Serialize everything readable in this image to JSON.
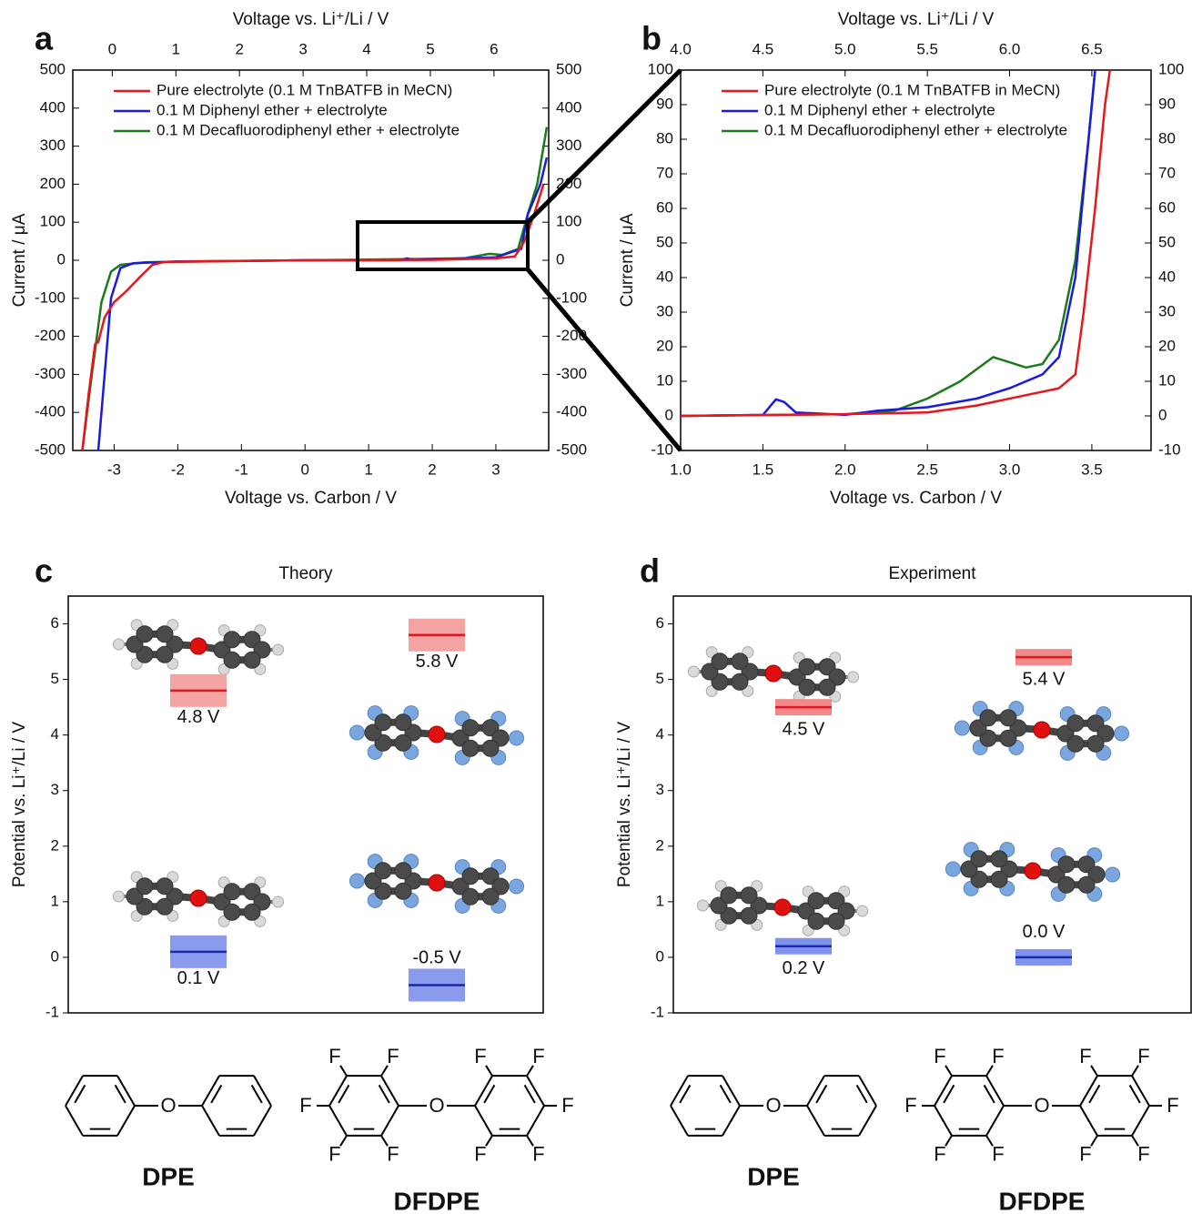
{
  "chart_data": [
    {
      "type": "line",
      "label": "a",
      "x_label": "Voltage vs. Carbon / V",
      "x2_label": "Voltage vs. Li⁺/Li / V",
      "y_label": "Current / μA",
      "xlim": [
        -3.65,
        3.83
      ],
      "xticks": [
        -3,
        -2,
        -1,
        0,
        1,
        2,
        3
      ],
      "x2lim": [
        -0.62,
        6.86
      ],
      "x2ticks": [
        0,
        1,
        2,
        3,
        4,
        5,
        6
      ],
      "ylim": [
        -500,
        500
      ],
      "yticks": [
        -500,
        -400,
        -300,
        -200,
        -100,
        0,
        100,
        200,
        300,
        400,
        500
      ],
      "y2lim": [
        -500,
        500
      ],
      "y2ticks": [
        -500,
        -400,
        -300,
        -200,
        -100,
        0,
        100,
        200,
        300,
        400,
        500
      ],
      "legend": "upper left",
      "series": [
        {
          "name": "Pure electrolyte (0.1 M TnBATFB in MeCN)",
          "color": "#e8161d",
          "x": [
            -3.5,
            -3.4,
            -3.3,
            -3.25,
            -3.15,
            -3.0,
            -2.8,
            -2.6,
            -2.4,
            -2.2,
            -1,
            0,
            2,
            3,
            3.3,
            3.45,
            3.6,
            3.75
          ],
          "values": [
            -500,
            -350,
            -220,
            -215,
            -150,
            -110,
            -80,
            -45,
            -12,
            -4,
            -2,
            0,
            1,
            5,
            10,
            50,
            120,
            200
          ]
        },
        {
          "name": "0.1 M Diphenyl ether + electrolyte",
          "color": "#1a1ae0",
          "x": [
            -3.25,
            -3.15,
            -3.05,
            -2.9,
            -2.7,
            -2,
            0,
            1.5,
            1.6,
            1.7,
            3,
            3.4,
            3.5,
            3.7,
            3.8
          ],
          "values": [
            -500,
            -300,
            -100,
            -20,
            -8,
            -3,
            0,
            0,
            5,
            1,
            8,
            30,
            120,
            200,
            270
          ]
        },
        {
          "name": "0.1 M Decafluorodiphenyl ether + electrolyte",
          "color": "#1b7a1b",
          "x": [
            -3.5,
            -3.35,
            -3.2,
            -3.05,
            -2.9,
            -2.5,
            0,
            2.5,
            2.9,
            3.1,
            3.35,
            3.5,
            3.65,
            3.8
          ],
          "values": [
            -500,
            -300,
            -110,
            -30,
            -12,
            -5,
            0,
            5,
            17,
            14,
            30,
            120,
            200,
            350
          ]
        }
      ]
    },
    {
      "type": "line",
      "label": "b",
      "x_label": "Voltage vs. Carbon / V",
      "x2_label": "Voltage vs. Li⁺/Li / V",
      "y_label": "Current / μA",
      "xlim": [
        1.0,
        3.86
      ],
      "xticks": [
        {
          "value": 1,
          "label": "1.0"
        },
        1.5,
        {
          "value": 2,
          "label": "2.0"
        },
        2.5,
        {
          "value": 3,
          "label": "3.0"
        },
        3.5
      ],
      "x2lim": [
        4.0,
        6.86
      ],
      "x2ticks": [
        {
          "value": 4,
          "label": "4.0"
        },
        4.5,
        {
          "value": 5,
          "label": "5.0"
        },
        5.5,
        {
          "value": 6,
          "label": "6.0"
        },
        6.5
      ],
      "ylim": [
        -10,
        100
      ],
      "yticks": [
        -10,
        0,
        10,
        20,
        30,
        40,
        50,
        60,
        70,
        80,
        90,
        100
      ],
      "y2lim": [
        -10,
        100
      ],
      "y2ticks": [
        -10,
        0,
        10,
        20,
        30,
        40,
        50,
        60,
        70,
        80,
        90,
        100
      ],
      "legend": "upper left",
      "series": [
        {
          "name": "Pure electrolyte (0.1 M TnBATFB in MeCN)",
          "color": "#e8161d",
          "x": [
            1,
            2,
            2.5,
            2.8,
            3.1,
            3.3,
            3.4,
            3.45,
            3.52,
            3.58,
            3.61
          ],
          "values": [
            0,
            0.5,
            1,
            3,
            6,
            8,
            12,
            30,
            60,
            90,
            100
          ]
        },
        {
          "name": "0.1 M Diphenyl ether + electrolyte",
          "color": "#1a1ae0",
          "x": [
            1,
            1.5,
            1.58,
            1.63,
            1.7,
            2.0,
            2.2,
            2.5,
            2.8,
            3.0,
            3.2,
            3.3,
            3.4,
            3.48,
            3.52
          ],
          "values": [
            0,
            0.3,
            4.8,
            4,
            1,
            0.3,
            1.5,
            2.5,
            5,
            8,
            12,
            17,
            40,
            80,
            100
          ]
        },
        {
          "name": "0.1 M Decafluorodiphenyl ether + electrolyte",
          "color": "#1b7a1b",
          "x": [
            1,
            2,
            2.3,
            2.5,
            2.7,
            2.9,
            3.0,
            3.1,
            3.2,
            3.3,
            3.4,
            3.48,
            3.52
          ],
          "values": [
            0,
            0.5,
            1.5,
            5,
            10,
            17,
            15.5,
            14,
            15,
            22,
            45,
            80,
            100
          ]
        }
      ]
    },
    {
      "type": "level",
      "label": "c",
      "title": "Theory",
      "y_label": "Potential vs. Li⁺/Li / V",
      "ylim": [
        -1,
        6.5
      ],
      "yticks": [
        -1,
        0,
        1,
        2,
        3,
        4,
        5,
        6
      ],
      "categories": [
        "DPE",
        "DFDPE"
      ],
      "series": [
        {
          "color": "#e3171f",
          "band_color": "#f4a3a3",
          "values": [
            4.8,
            5.8
          ],
          "value_labels": [
            "4.8 V",
            "5.8 V"
          ]
        },
        {
          "color": "#1a2aa8",
          "band_color": "#8a9bee",
          "values": [
            0.1,
            -0.5
          ],
          "value_labels": [
            "0.1 V",
            "-0.5 V"
          ]
        }
      ],
      "structure_atoms": [
        [
          "O"
        ],
        [
          "F",
          "F",
          "F",
          "F",
          "F",
          "O",
          "F",
          "F",
          "F",
          "F",
          "F"
        ]
      ]
    },
    {
      "type": "level",
      "label": "d",
      "title": "Experiment",
      "y_label": "Potential vs. Li⁺/Li / V",
      "ylim": [
        -1,
        6.5
      ],
      "yticks": [
        -1,
        0,
        1,
        2,
        3,
        4,
        5,
        6
      ],
      "categories": [
        "DPE",
        "DFDPE"
      ],
      "series": [
        {
          "color": "#e3171f",
          "band_color": "#f08a8a",
          "values": [
            4.5,
            5.4
          ],
          "value_labels": [
            "4.5 V",
            "5.4 V"
          ]
        },
        {
          "color": "#1a2aa8",
          "band_color": "#7f93ee",
          "values": [
            0.2,
            0.0
          ],
          "value_labels": [
            "0.2 V",
            "0.0 V"
          ]
        }
      ],
      "structure_atoms": [
        [
          "O"
        ],
        [
          "F",
          "F",
          "F",
          "F",
          "F",
          "O",
          "F",
          "F",
          "F",
          "F",
          "F"
        ]
      ]
    }
  ]
}
